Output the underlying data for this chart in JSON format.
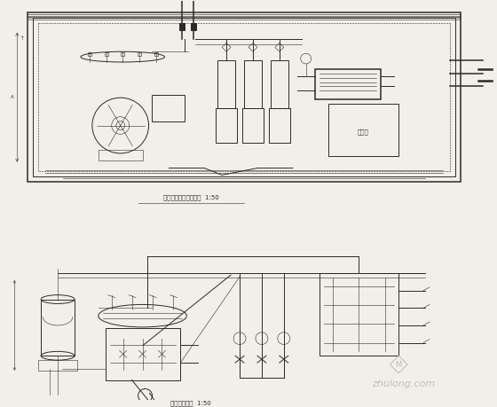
{
  "bg_color": "#f2efe9",
  "line_color": "#2a2a2a",
  "title1": "热力站房间平面布置图  1:50",
  "title2": "热力站流程图  1:50",
  "watermark": "zhulong.com",
  "fig_bg": "#f2efe9"
}
